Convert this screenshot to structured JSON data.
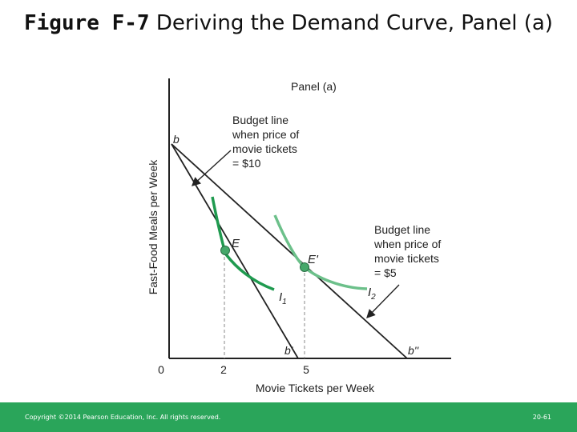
{
  "slide": {
    "title_bold": "Figure F-7",
    "title_rest": "Deriving the Demand Curve, Panel (a)"
  },
  "chart_data": {
    "type": "line",
    "title": "Panel (a)",
    "xlabel": "Movie Tickets per Week",
    "ylabel": "Fast-Food Meals per Week",
    "x_ticks": [
      "0",
      "2",
      "5"
    ],
    "budget_lines": [
      {
        "name": "b",
        "end_label": "b'",
        "x_intercept": 5,
        "annotation": [
          "Budget line",
          "when price of",
          "movie tickets",
          "= $10"
        ]
      },
      {
        "name": "b",
        "end_label": "b''",
        "x_intercept": 10,
        "annotation": [
          "Budget line",
          "when price of",
          "movie tickets",
          "= $5"
        ]
      }
    ],
    "start_label": "b",
    "indifference_curves": [
      {
        "name": "I1",
        "label_main": "I",
        "label_sub": "1",
        "color": "#1f9a4f"
      },
      {
        "name": "I2",
        "label_main": "I",
        "label_sub": "2",
        "color": "#6cc08a"
      }
    ],
    "points": [
      {
        "label": "E",
        "x": 2
      },
      {
        "label": "E'",
        "x": 5
      }
    ],
    "colors": {
      "axis": "#222222",
      "line": "#222222",
      "point": "#45a86a"
    }
  },
  "footer": {
    "copyright": "Copyright ©2014 Pearson Education, Inc. All rights reserved.",
    "page": "20-61"
  }
}
